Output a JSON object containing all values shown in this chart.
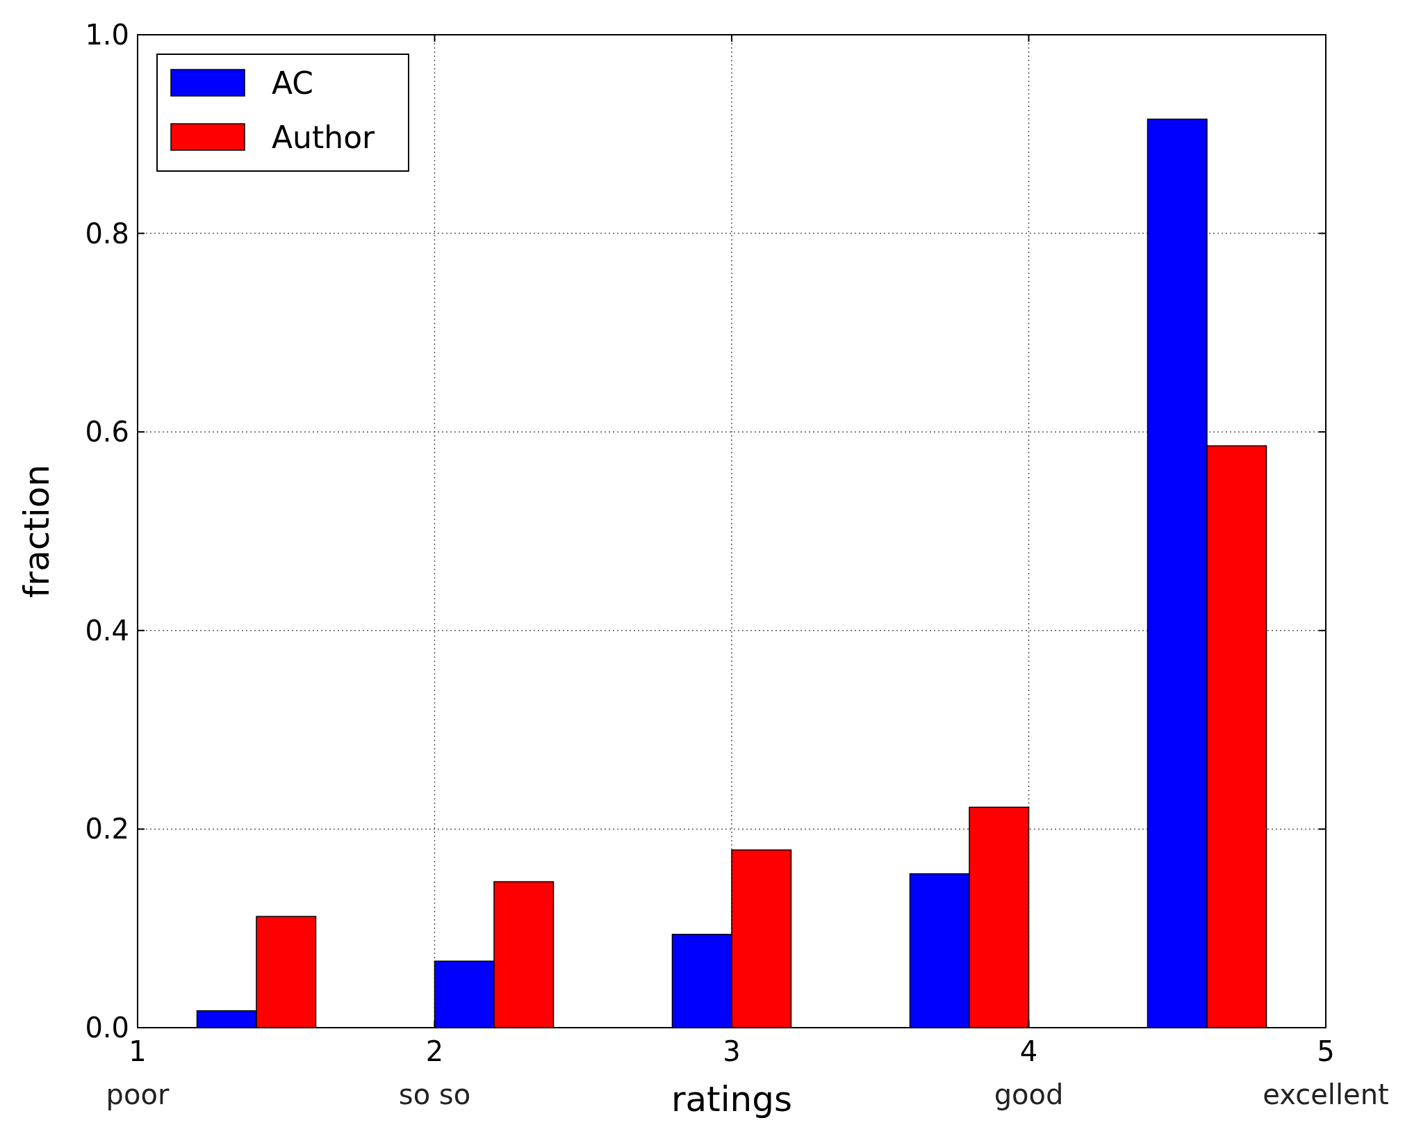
{
  "chart_data": {
    "type": "bar",
    "xlabel": "ratings",
    "ylabel": "fraction",
    "xlim": [
      1,
      5
    ],
    "xticks": [
      {
        "value": 1,
        "label": "1\npoor"
      },
      {
        "value": 2,
        "label": "2\nso so"
      },
      3,
      {
        "value": 4,
        "label": "4\ngood"
      },
      {
        "value": 5,
        "label": "5\nexcellent"
      }
    ],
    "ylim": [
      0,
      1
    ],
    "yticks": [
      {
        "value": 0,
        "label": "0.0"
      },
      {
        "value": 0.2,
        "label": "0.2"
      },
      {
        "value": 0.4,
        "label": "0.4"
      },
      {
        "value": 0.6,
        "label": "0.6"
      },
      {
        "value": 0.8,
        "label": "0.8"
      },
      {
        "value": 1,
        "label": "1.0"
      }
    ],
    "grid": true,
    "legend": "top left",
    "series": [
      {
        "name": "AC",
        "color": "#0000ff",
        "x": [
          1.3,
          2.1,
          2.9,
          3.7,
          4.5
        ],
        "values": [
          0.017,
          0.067,
          0.094,
          0.155,
          0.915
        ]
      },
      {
        "name": "Author",
        "color": "#ff0000",
        "x": [
          1.5,
          2.3,
          3.1,
          3.9,
          4.7
        ],
        "values": [
          0.112,
          0.147,
          0.179,
          0.222,
          0.586
        ]
      }
    ]
  }
}
